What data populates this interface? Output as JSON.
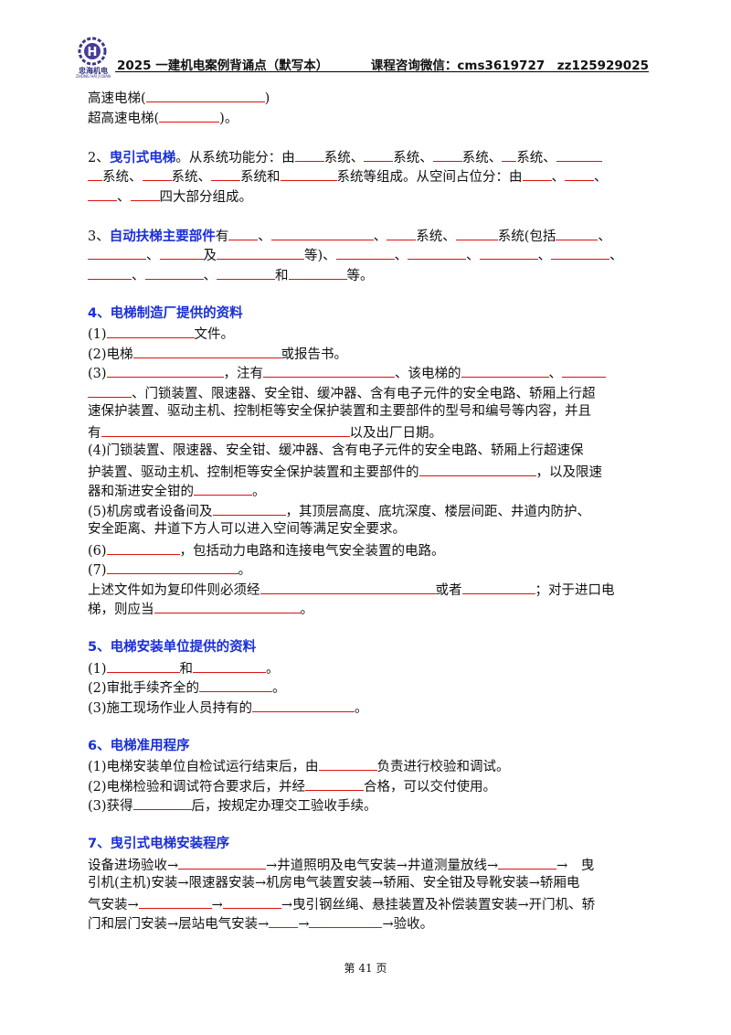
{
  "header": {
    "logo_text": "忠海机电",
    "logo_sub": "ZHONG HAI JI DIAN",
    "title": "2025 一建机电案例背诵点（默写本）",
    "contact": "课程咨询微信：cms3619727　zz125929025"
  },
  "texts": {
    "t1a": "高速电梯(",
    "t1b": ")",
    "t2a": "超高速电梯(",
    "t2b": ")。",
    "s2num": "2、",
    "s2hl": "曳引式电梯",
    "s2a": "。从系统功能分：由",
    "xt": "系统、",
    "xt_and": "系统和",
    "s2b": "系统等组成。从空间占位分：由",
    "dun": "、",
    "s2c": "四大部分组成。",
    "s3num": "3、",
    "s3hl": "自动扶梯主要部件",
    "s3a": "有",
    "s3b": "系统、",
    "s3c": "系统(包括",
    "s3d": "及",
    "s3e": "等)、",
    "he": "和",
    "deng": "等。",
    "s4title": "4、电梯制造厂提供的资料",
    "s4_1a": "(1)",
    "s4_1b": "文件。",
    "s4_2a": "(2)电梯",
    "s4_2b": "或报告书。",
    "s4_3a": "(3)",
    "s4_3b": "，注有",
    "s4_3c": "、该电梯的",
    "s4_3d": "、门锁装置、限速器、安全钳、缓冲器、含有电子元件的安全电路、轿厢上行超",
    "s4_3e": "速保护装置、驱动主机、控制柜等安全保护装置和主要部件的型号和编号等内容，并且",
    "s4_3f": "有",
    "s4_3g": "以及出厂日期。",
    "s4_4a": "(4)门锁装置、限速器、安全钳、缓冲器、含有电子元件的安全电路、轿厢上行超速保",
    "s4_4b": "护装置、驱动主机、控制柜等安全保护装置和主要部件的",
    "s4_4c": "，以及限速",
    "s4_4d": "器和渐进安全钳的",
    "ju": "。",
    "s4_5a": "(5)机房或者设备间及",
    "s4_5b": "，其顶层高度、底坑深度、楼层间距、井道内防护、",
    "s4_5c": "安全距离、井道下方人可以进入空间等满足安全要求。",
    "s4_6a": "(6)",
    "s4_6b": "，包括动力电路和连接电气安全装置的电路。",
    "s4_7a": "(7)",
    "s4_8a": "上述文件如为复印件则必须经",
    "s4_8b": "或者",
    "s4_8c": "；对于进口电",
    "s4_8d": "梯，则应当",
    "s5title": "5、电梯安装单位提供的资料",
    "s5_1a": "(1)",
    "s5_2a": "(2)审批手续齐全的",
    "s5_3a": "(3)施工现场作业人员持有的",
    "s6title": "6、电梯准用程序",
    "s6_1a": "(1)电梯安装单位自检试运行结束后，由",
    "s6_1b": "负责进行校验和调试。",
    "s6_2a": "(2)电梯检验和调试符合要求后，并经",
    "s6_2b": "合格，可以交付使用。",
    "s6_3a": "(3)获得",
    "s6_3b": "后，按规定办理交工验收手续。",
    "s7title": "7、曳引式电梯安装程序",
    "s7_1a": "设备进场验收→",
    "s7_1b": "→井道照明及电气安装→井道测量放线→",
    "s7_1c": "→　曳",
    "s7_2a": "引机(主机)安装→限速器安装→机房电气装置安装→轿厢、安全钳及导靴安装→轿厢电",
    "s7_3a": "气安装→",
    "arrow": "→",
    "s7_3b": "→曳引钢丝绳、悬挂装置及补偿装置安装→开门机、轿",
    "s7_4a": "门和层门安装→层站电气安装→",
    "s7_4b": "→验收。"
  },
  "footer": {
    "page": "第 41 页"
  }
}
